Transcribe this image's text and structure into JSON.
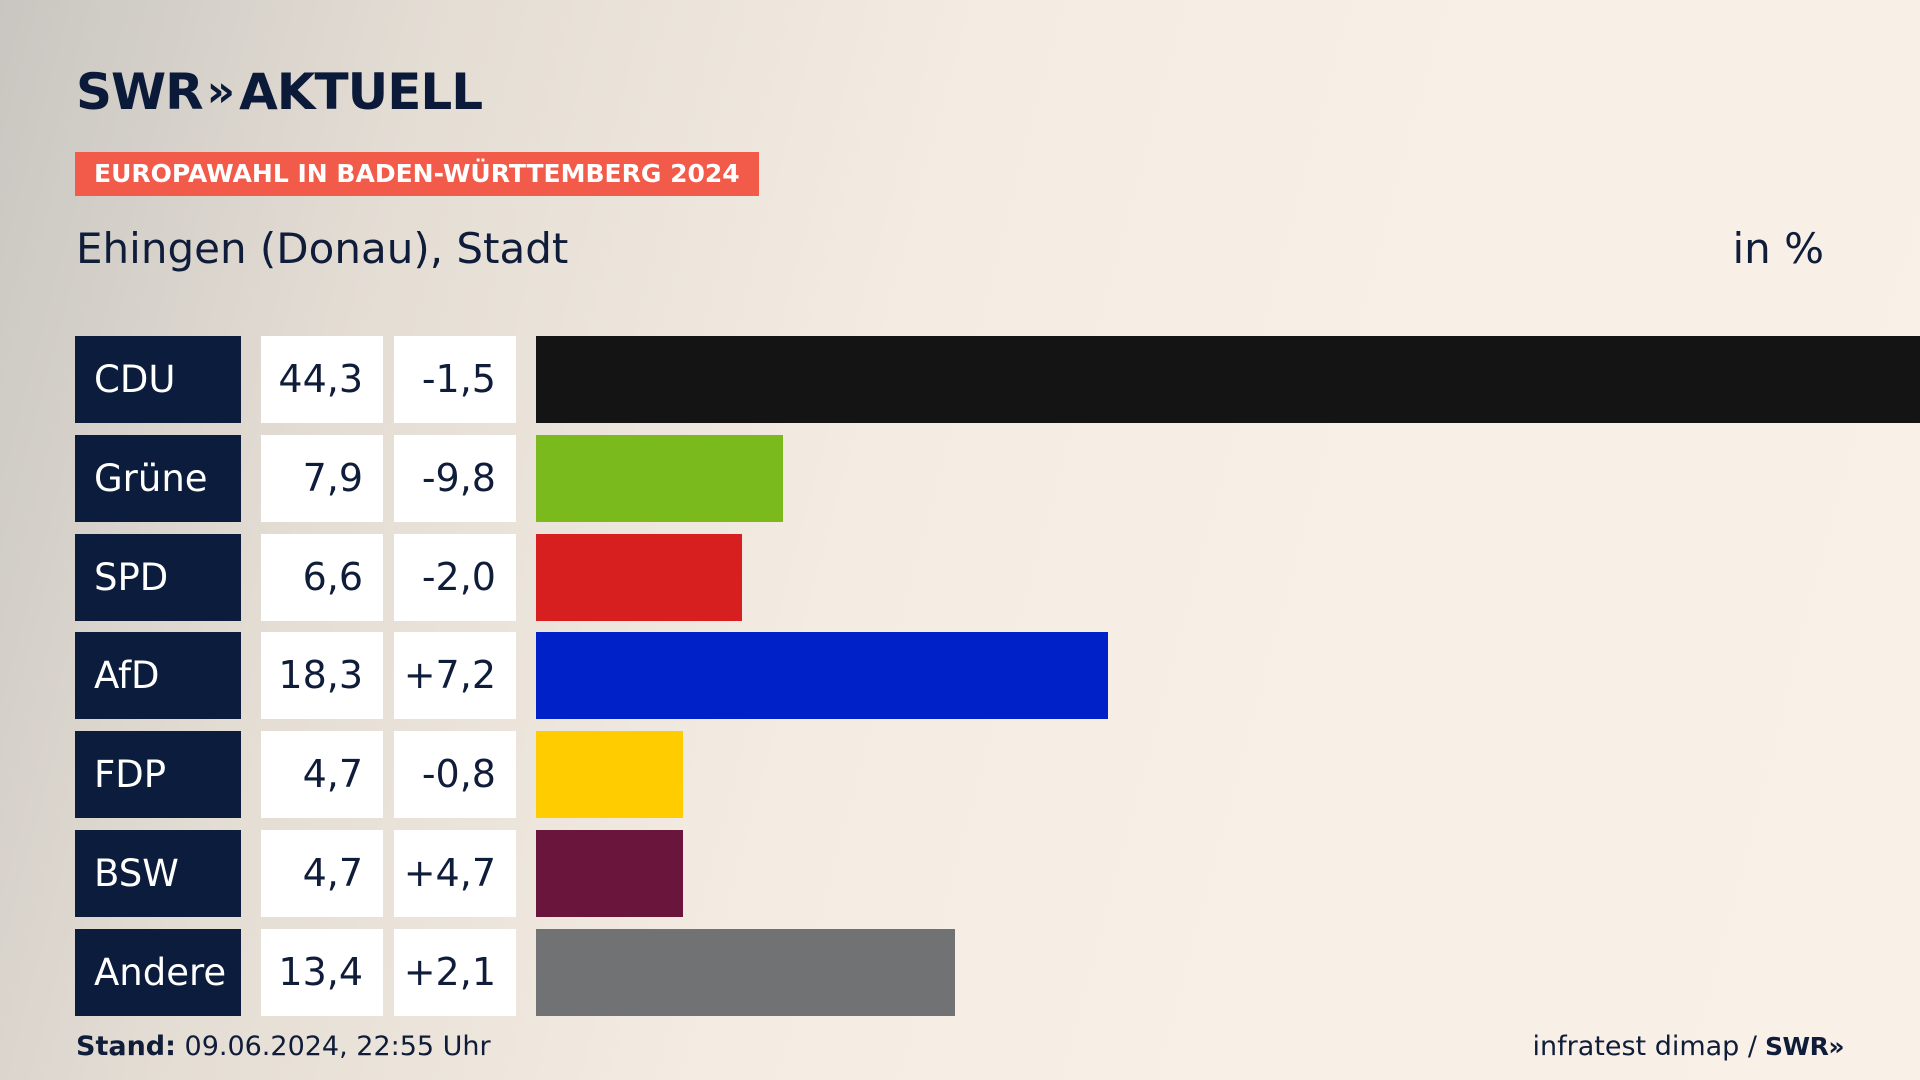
{
  "brand": {
    "name": "SWR",
    "chevrons": "»",
    "product": "AKTUELL"
  },
  "banner": "EUROPAWAHL IN BADEN-WÜRTTEMBERG 2024",
  "subtitle": "Ehingen (Donau), Stadt",
  "unit": "in %",
  "footer": {
    "stand_label": "Stand:",
    "stand_value": "09.06.2024, 22:55 Uhr",
    "source": "infratest dimap /",
    "source_logo": "SWR»"
  },
  "chart_data": {
    "type": "bar",
    "orientation": "horizontal",
    "title": "Ehingen (Donau), Stadt",
    "unit": "in %",
    "categories": [
      "CDU",
      "Grüne",
      "SPD",
      "AfD",
      "FDP",
      "BSW",
      "Andere"
    ],
    "values": [
      44.3,
      7.9,
      6.6,
      18.3,
      4.7,
      4.7,
      13.4
    ],
    "value_labels": [
      "44,3",
      "7,9",
      "6,6",
      "18,3",
      "4,7",
      "4,7",
      "13,4"
    ],
    "diff_labels": [
      "-1,5",
      "-9,8",
      "-2,0",
      "+7,2",
      "-0,8",
      "+4,7",
      "+2,1"
    ],
    "diffs": [
      -1.5,
      -9.8,
      -2.0,
      7.2,
      -0.8,
      4.7,
      2.1
    ],
    "colors": [
      "#141414",
      "#7aba1c",
      "#d71f1f",
      "#0021c8",
      "#ffcc00",
      "#6a163c",
      "#717273"
    ],
    "xlim": [
      0,
      44.3
    ],
    "grid": false,
    "legend": "none"
  }
}
